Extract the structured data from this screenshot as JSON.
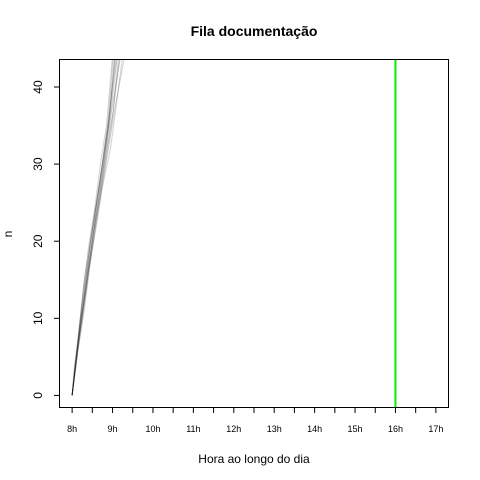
{
  "chart_data": {
    "type": "line",
    "title": "Fila documentação",
    "xlabel": "Hora ao longo do dia",
    "ylabel": "n",
    "xlim": [
      7.7,
      17.3
    ],
    "ylim": [
      -1.5,
      43.5
    ],
    "x_ticks": [
      {
        "value": 8,
        "label": "8h"
      },
      {
        "value": 9,
        "label": "9h"
      },
      {
        "value": 10,
        "label": "10h"
      },
      {
        "value": 11,
        "label": "11h"
      },
      {
        "value": 12,
        "label": "12h"
      },
      {
        "value": 13,
        "label": "13h"
      },
      {
        "value": 14,
        "label": "14h"
      },
      {
        "value": 15,
        "label": "15h"
      },
      {
        "value": 16,
        "label": "16h"
      },
      {
        "value": 17,
        "label": "17h"
      }
    ],
    "x_minor_ticks": [
      8.5,
      9.5,
      10.5,
      11.5,
      12.5,
      13.5,
      14.5,
      15.5,
      16.5
    ],
    "y_ticks": [
      0,
      10,
      20,
      30,
      40
    ],
    "series_style": {
      "color": "#000000",
      "opacity": 0.18
    },
    "series": [
      {
        "x": [
          8.0,
          8.1,
          8.2,
          8.3,
          8.45,
          8.6,
          8.75,
          8.9,
          9.05
        ],
        "y": [
          0,
          5,
          10,
          15,
          20,
          25,
          30,
          35,
          44
        ]
      },
      {
        "x": [
          8.0,
          8.15,
          8.3,
          8.42,
          8.55,
          8.7,
          8.85,
          9.0,
          9.15
        ],
        "y": [
          0,
          6,
          11,
          16,
          21,
          26,
          31,
          36,
          44
        ]
      },
      {
        "x": [
          8.0,
          8.05,
          8.2,
          8.35,
          8.5,
          8.62,
          8.78,
          8.92,
          9.1
        ],
        "y": [
          0,
          3,
          9,
          14,
          20,
          25,
          30,
          36,
          44
        ]
      },
      {
        "x": [
          8.0,
          8.12,
          8.25,
          8.4,
          8.6,
          8.75,
          8.95,
          9.1,
          9.25
        ],
        "y": [
          0,
          5,
          10,
          16,
          22,
          27,
          32,
          38,
          44
        ]
      },
      {
        "x": [
          8.0,
          8.08,
          8.18,
          8.28,
          8.4,
          8.55,
          8.7,
          8.85,
          9.0
        ],
        "y": [
          0,
          4,
          9,
          14,
          19,
          24,
          30,
          35,
          44
        ]
      },
      {
        "x": [
          8.0,
          8.1,
          8.22,
          8.36,
          8.52,
          8.68,
          8.82,
          8.98,
          9.2
        ],
        "y": [
          0,
          5,
          10,
          15,
          21,
          26,
          31,
          37,
          44
        ]
      },
      {
        "x": [
          8.0,
          8.06,
          8.16,
          8.3,
          8.46,
          8.58,
          8.72,
          8.88,
          9.02
        ],
        "y": [
          0,
          4,
          8,
          14,
          20,
          24,
          29,
          35,
          44
        ]
      },
      {
        "x": [
          8.0,
          8.14,
          8.28,
          8.44,
          8.58,
          8.74,
          8.9,
          9.05,
          9.3
        ],
        "y": [
          0,
          6,
          11,
          17,
          22,
          27,
          32,
          37,
          44
        ]
      },
      {
        "x": [
          8.0,
          8.1,
          8.24,
          8.38,
          8.5,
          8.64,
          8.8,
          8.94,
          9.12
        ],
        "y": [
          0,
          5,
          10,
          16,
          20,
          25,
          31,
          36,
          44
        ]
      },
      {
        "x": [
          8.0,
          8.09,
          8.19,
          8.33,
          8.48,
          8.66,
          8.77,
          8.93,
          9.08
        ],
        "y": [
          0,
          4,
          9,
          15,
          21,
          27,
          31,
          37,
          44
        ]
      },
      {
        "x": [
          8.0,
          8.13,
          8.26,
          8.39,
          8.53,
          8.69,
          8.86,
          9.02,
          9.18
        ],
        "y": [
          0,
          6,
          11,
          16,
          21,
          26,
          32,
          37,
          44
        ]
      },
      {
        "x": [
          8.0,
          8.07,
          8.21,
          8.34,
          8.47,
          8.61,
          8.76,
          8.9,
          9.06
        ],
        "y": [
          0,
          3,
          9,
          15,
          20,
          25,
          30,
          35,
          44
        ]
      }
    ],
    "vline": {
      "x": 16,
      "color": "#00ee00"
    }
  }
}
